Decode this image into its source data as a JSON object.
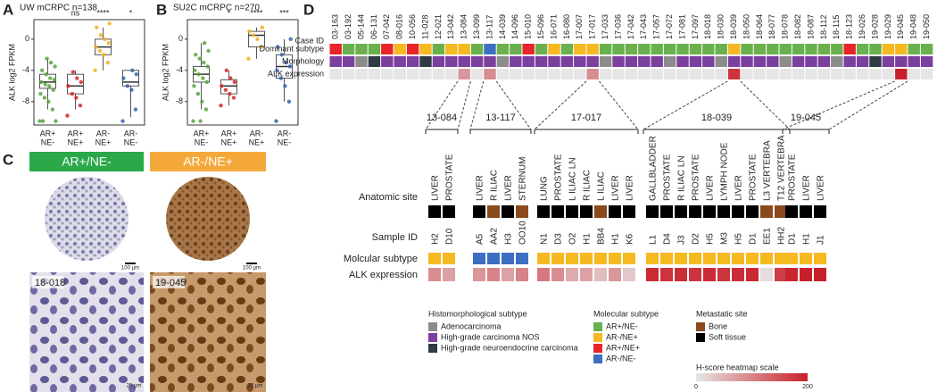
{
  "panel_letters": [
    "A",
    "B",
    "C",
    "D"
  ],
  "chart_data": [
    {
      "type": "box",
      "title": "UW mCRPC n=138",
      "ylabel": "ALK log2 FPKM",
      "ylim": [
        -11,
        2.5
      ],
      "yticks": [
        -8,
        -4,
        0
      ],
      "categories": [
        [
          "AR+",
          "NE-"
        ],
        [
          "AR+",
          "NE+"
        ],
        [
          "AR-",
          "NE+"
        ],
        [
          "AR-",
          "NE-"
        ]
      ],
      "colors": [
        "#5aa33f",
        "#d7262b",
        "#f4b223",
        "#3c62b0"
      ],
      "significance": [
        null,
        "ns",
        "****",
        "*"
      ],
      "boxes": [
        {
          "min": -9,
          "q1": -6.3,
          "median": -5.5,
          "q3": -4.5,
          "max": -2.5,
          "points": [
            -10.5,
            -9,
            -8,
            -7.5,
            -7,
            -6.5,
            -6,
            -5.8,
            -5.5,
            -5.2,
            -5,
            -4.5,
            -4,
            -3.5,
            -3,
            -2.5,
            -10.5,
            -10.5
          ]
        },
        {
          "min": -9,
          "q1": -7,
          "median": -6,
          "q3": -4.5,
          "max": -4,
          "points": [
            -9.8,
            -8.5,
            -7.5,
            -7,
            -6,
            -5.5,
            -5,
            -4.2
          ]
        },
        {
          "min": -4,
          "q1": -2,
          "median": -1,
          "q3": 0,
          "max": 1.5,
          "points": [
            -4,
            -3,
            -2,
            -1.5,
            -1,
            -0.5,
            0,
            0.5,
            1.5,
            2
          ]
        },
        {
          "min": -10,
          "q1": -6,
          "median": -5.5,
          "q3": -4,
          "max": -4,
          "points": [
            -10.5,
            -9,
            -6.5,
            -6,
            -5,
            -4.5,
            -4
          ]
        }
      ]
    },
    {
      "type": "box",
      "title": "SU2C mCRPC n=270",
      "ylabel": "ALK log2 FPKM",
      "ylim": [
        -11,
        2.5
      ],
      "yticks": [
        -8,
        -4,
        0
      ],
      "categories": [
        [
          "AR+",
          "NE-"
        ],
        [
          "AR+",
          "NE+"
        ],
        [
          "AR-",
          "NE+"
        ],
        [
          "AR-",
          "NE-"
        ]
      ],
      "colors": [
        "#5aa33f",
        "#d7262b",
        "#f4b223",
        "#3c62b0"
      ],
      "significance": [
        null,
        "*",
        "****",
        "***"
      ],
      "boxes": [
        {
          "min": -9,
          "q1": -5.5,
          "median": -4.5,
          "q3": -3.5,
          "max": -0.5,
          "points": [
            -10.5,
            -9,
            -8,
            -7,
            -6,
            -5.5,
            -5,
            -4.5,
            -4,
            -3.5,
            -3,
            -2.5,
            -2,
            -1.5,
            -0.5,
            -10.5
          ]
        },
        {
          "min": -8.5,
          "q1": -7,
          "median": -6,
          "q3": -5.2,
          "max": -4,
          "points": [
            -8.5,
            -7.5,
            -7,
            -6.5,
            -6,
            -5.5,
            -5,
            -4
          ]
        },
        {
          "min": -2.5,
          "q1": -1,
          "median": 0.5,
          "q3": 1,
          "max": 1.5,
          "points": [
            -2.5,
            -1,
            0,
            0.5,
            1,
            1.5
          ]
        },
        {
          "min": -8,
          "q1": -5,
          "median": -3.5,
          "q3": -2,
          "max": 0,
          "points": [
            -10.5,
            -8,
            -6,
            -5,
            -4,
            -3.5,
            -3,
            -2,
            -1,
            0
          ]
        }
      ]
    }
  ],
  "panel_c": {
    "headers": [
      "AR+/NE-",
      "AR-/NE+"
    ],
    "header_colors": [
      "#2aa84a",
      "#f5a83a"
    ],
    "scale_low": "100 µm",
    "scale_high": "20 µm",
    "cases": [
      "18-018",
      "19-045"
    ]
  },
  "panel_d": {
    "row_labels": [
      "Case ID",
      "Dominant subtype",
      "Morphology",
      "ALK expression"
    ],
    "case_ids": [
      "03-163",
      "03-192",
      "05-144",
      "06-131",
      "07-042",
      "08-016",
      "10-056",
      "11-028",
      "12-021",
      "13-042",
      "13-084",
      "13-099",
      "13-117",
      "14-039",
      "14-096",
      "15-010",
      "15-096",
      "16-071",
      "16-080",
      "17-007",
      "17-017",
      "17-033",
      "17-036",
      "17-042",
      "17-043",
      "17-057",
      "17-072",
      "17-081",
      "17-097",
      "18-018",
      "18-030",
      "18-039",
      "18-050",
      "18-064",
      "18-077",
      "18-078",
      "18-082",
      "18-087",
      "18-112",
      "18-115",
      "18-123",
      "19-026",
      "19-028",
      "19-029",
      "19-045",
      "19-048",
      "19-050"
    ],
    "dominant_subtype": [
      2,
      0,
      0,
      0,
      2,
      1,
      2,
      1,
      0,
      1,
      1,
      0,
      3,
      0,
      0,
      2,
      0,
      1,
      0,
      1,
      1,
      0,
      0,
      0,
      0,
      0,
      0,
      0,
      0,
      0,
      0,
      1,
      0,
      0,
      0,
      0,
      0,
      0,
      0,
      0,
      2,
      0,
      0,
      1,
      1,
      0,
      0
    ],
    "morphology": [
      1,
      1,
      0,
      2,
      1,
      1,
      1,
      2,
      1,
      1,
      1,
      1,
      1,
      0,
      1,
      1,
      1,
      1,
      1,
      1,
      1,
      0,
      1,
      1,
      1,
      1,
      0,
      1,
      1,
      1,
      0,
      1,
      1,
      1,
      1,
      0,
      1,
      1,
      1,
      0,
      1,
      1,
      2,
      1,
      1,
      1,
      1
    ],
    "alk_expression": [
      0,
      0,
      0,
      0,
      0,
      0,
      0,
      0,
      0,
      0,
      80,
      0,
      90,
      0,
      0,
      0,
      0,
      0,
      0,
      0,
      90,
      0,
      0,
      0,
      0,
      0,
      0,
      0,
      0,
      0,
      0,
      180,
      0,
      0,
      0,
      0,
      0,
      0,
      0,
      0,
      0,
      0,
      0,
      0,
      200,
      0,
      0
    ],
    "detail_row_labels": [
      "Anatomic site",
      "Sample ID",
      "Molcular subtype",
      "ALK expression"
    ],
    "groups": [
      {
        "case_index": 10,
        "label": "13-084",
        "sites": [
          "LIVER",
          "PROSTATE"
        ],
        "sample_ids": [
          "H2",
          "D10"
        ],
        "site_type": [
          1,
          1
        ],
        "subtype": [
          1,
          1
        ],
        "alk": [
          90,
          70
        ]
      },
      {
        "case_index": 12,
        "label": "13-117",
        "sites": [
          "LIVER",
          "R ILIAC",
          "LIVER",
          "STERNUM"
        ],
        "sample_ids": [
          "A5",
          "AA2",
          "H3",
          "OO10"
        ],
        "site_type": [
          1,
          0,
          1,
          0
        ],
        "subtype": [
          3,
          3,
          3,
          3
        ],
        "alk": [
          80,
          100,
          70,
          100
        ]
      },
      {
        "case_index": 20,
        "label": "17-017",
        "sites": [
          "LUNG",
          "PROSTATE",
          "L ILIAC LN",
          "R ILIAC",
          "L ILIAC",
          "LIVER",
          "LIVER"
        ],
        "sample_ids": [
          "N1",
          "D3",
          "O2",
          "H1",
          "BB4",
          "H1",
          "K6"
        ],
        "site_type": [
          1,
          1,
          1,
          1,
          0,
          1,
          1
        ],
        "subtype": [
          1,
          1,
          1,
          1,
          1,
          1,
          1
        ],
        "alk": [
          110,
          90,
          60,
          70,
          40,
          80,
          30
        ]
      },
      {
        "case_index": 31,
        "label": "18-039",
        "sites": [
          "GALLBLADDER",
          "PROSTATE",
          "R ILIAC LN",
          "PROSTATE",
          "LIVER",
          "LYMPH NODE",
          "LIVER",
          "PROSTATE",
          "L3 VERTEBRA",
          "T12 VERTEBRA"
        ],
        "sample_ids": [
          "L1",
          "D4",
          "J3",
          "D2",
          "H5",
          "M3",
          "H5",
          "D1",
          "EE1",
          "HH2"
        ],
        "site_type": [
          1,
          1,
          1,
          1,
          1,
          1,
          1,
          1,
          0,
          0
        ],
        "subtype": [
          1,
          1,
          1,
          1,
          1,
          1,
          1,
          1,
          1,
          1
        ],
        "alk": [
          190,
          180,
          185,
          180,
          190,
          180,
          185,
          190,
          10,
          170
        ]
      },
      {
        "case_index": 44,
        "label": "19-045",
        "sites": [
          "PROSTATE",
          "LIVER",
          "LIVER"
        ],
        "sample_ids": [
          "D1",
          "H1",
          "J1"
        ],
        "site_type": [
          1,
          1,
          1
        ],
        "subtype": [
          1,
          1,
          1
        ],
        "alk": [
          195,
          200,
          200
        ]
      }
    ],
    "legend": {
      "morphology_title": "Histomorphological subtype",
      "morphology": [
        {
          "name": "Adenocarcinoma",
          "color": "#8c8c8c"
        },
        {
          "name": "High-grade carcinoma NOS",
          "color": "#7b3f9e"
        },
        {
          "name": "High-grade neuroendocrine carcinoma",
          "color": "#2f3a44"
        }
      ],
      "subtype_title": "Molecular subtype",
      "subtype": [
        {
          "name": "AR+/NE-",
          "color": "#6ab04c"
        },
        {
          "name": "AR-/NE+",
          "color": "#f5b921"
        },
        {
          "name": "AR+/NE+",
          "color": "#e8242a"
        },
        {
          "name": "AR-/NE-",
          "color": "#3d6fc1"
        }
      ],
      "site_title": "Metastatic site",
      "site": [
        {
          "name": "Bone",
          "color": "#8b4a1e"
        },
        {
          "name": "Soft tissue",
          "color": "#000000"
        }
      ],
      "heatmap_title": "H-score heatmap scale",
      "heatmap_range": [
        0,
        200
      ],
      "heatmap_colors": [
        "#e6e6e6",
        "#c8202a"
      ]
    }
  }
}
